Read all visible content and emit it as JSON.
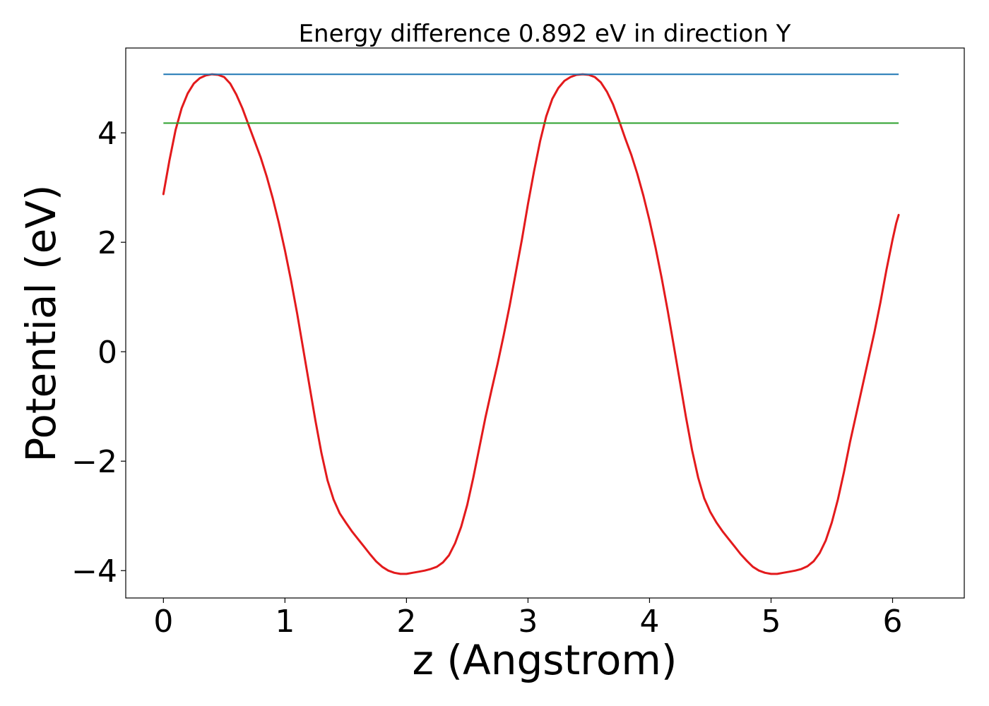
{
  "chart_data": {
    "type": "line",
    "title": "Energy difference 0.892 eV in direction Y",
    "xlabel": "z (Angstrom)",
    "ylabel": "Potential (eV)",
    "xlim": [
      -0.31,
      6.59
    ],
    "ylim": [
      -4.5,
      5.55
    ],
    "grid": false,
    "legend": "none",
    "x_ticks": [
      {
        "value": 0,
        "label": "0"
      },
      {
        "value": 1,
        "label": "1"
      },
      {
        "value": 2,
        "label": "2"
      },
      {
        "value": 3,
        "label": "3"
      },
      {
        "value": 4,
        "label": "4"
      },
      {
        "value": 5,
        "label": "5"
      },
      {
        "value": 6,
        "label": "6"
      }
    ],
    "y_ticks": [
      {
        "value": -4,
        "label": "−4"
      },
      {
        "value": -2,
        "label": "−2"
      },
      {
        "value": 0,
        "label": "0"
      },
      {
        "value": 2,
        "label": "2"
      },
      {
        "value": 4,
        "label": "4"
      }
    ],
    "series": [
      {
        "color": "#e31a1c",
        "kind": "curve",
        "points": [
          [
            0.0,
            2.88
          ],
          [
            0.05,
            3.5
          ],
          [
            0.1,
            4.05
          ],
          [
            0.15,
            4.45
          ],
          [
            0.2,
            4.72
          ],
          [
            0.25,
            4.9
          ],
          [
            0.3,
            5.0
          ],
          [
            0.35,
            5.05
          ],
          [
            0.4,
            5.07
          ],
          [
            0.45,
            5.06
          ],
          [
            0.5,
            5.02
          ],
          [
            0.55,
            4.9
          ],
          [
            0.6,
            4.7
          ],
          [
            0.65,
            4.45
          ],
          [
            0.7,
            4.15
          ],
          [
            0.75,
            3.85
          ],
          [
            0.8,
            3.55
          ],
          [
            0.85,
            3.2
          ],
          [
            0.9,
            2.8
          ],
          [
            0.95,
            2.35
          ],
          [
            1.0,
            1.85
          ],
          [
            1.05,
            1.3
          ],
          [
            1.1,
            0.7
          ],
          [
            1.15,
            0.05
          ],
          [
            1.2,
            -0.6
          ],
          [
            1.25,
            -1.25
          ],
          [
            1.3,
            -1.85
          ],
          [
            1.35,
            -2.35
          ],
          [
            1.4,
            -2.7
          ],
          [
            1.45,
            -2.95
          ],
          [
            1.5,
            -3.12
          ],
          [
            1.55,
            -3.28
          ],
          [
            1.6,
            -3.42
          ],
          [
            1.65,
            -3.56
          ],
          [
            1.7,
            -3.7
          ],
          [
            1.75,
            -3.83
          ],
          [
            1.8,
            -3.93
          ],
          [
            1.85,
            -4.0
          ],
          [
            1.9,
            -4.04
          ],
          [
            1.95,
            -4.06
          ],
          [
            2.0,
            -4.06
          ],
          [
            2.05,
            -4.04
          ],
          [
            2.1,
            -4.02
          ],
          [
            2.15,
            -4.0
          ],
          [
            2.2,
            -3.97
          ],
          [
            2.25,
            -3.93
          ],
          [
            2.3,
            -3.85
          ],
          [
            2.35,
            -3.72
          ],
          [
            2.4,
            -3.5
          ],
          [
            2.45,
            -3.2
          ],
          [
            2.5,
            -2.8
          ],
          [
            2.55,
            -2.3
          ],
          [
            2.6,
            -1.75
          ],
          [
            2.65,
            -1.2
          ],
          [
            2.7,
            -0.7
          ],
          [
            2.75,
            -0.22
          ],
          [
            2.8,
            0.3
          ],
          [
            2.85,
            0.85
          ],
          [
            2.9,
            1.45
          ],
          [
            2.95,
            2.05
          ],
          [
            3.0,
            2.7
          ],
          [
            3.05,
            3.3
          ],
          [
            3.1,
            3.85
          ],
          [
            3.15,
            4.3
          ],
          [
            3.2,
            4.62
          ],
          [
            3.25,
            4.82
          ],
          [
            3.3,
            4.95
          ],
          [
            3.35,
            5.02
          ],
          [
            3.4,
            5.06
          ],
          [
            3.45,
            5.07
          ],
          [
            3.5,
            5.06
          ],
          [
            3.55,
            5.02
          ],
          [
            3.6,
            4.92
          ],
          [
            3.65,
            4.75
          ],
          [
            3.7,
            4.52
          ],
          [
            3.75,
            4.22
          ],
          [
            3.8,
            3.9
          ],
          [
            3.85,
            3.6
          ],
          [
            3.9,
            3.25
          ],
          [
            3.95,
            2.85
          ],
          [
            4.0,
            2.4
          ],
          [
            4.05,
            1.9
          ],
          [
            4.1,
            1.35
          ],
          [
            4.15,
            0.75
          ],
          [
            4.2,
            0.1
          ],
          [
            4.25,
            -0.55
          ],
          [
            4.3,
            -1.2
          ],
          [
            4.35,
            -1.8
          ],
          [
            4.4,
            -2.3
          ],
          [
            4.45,
            -2.68
          ],
          [
            4.5,
            -2.93
          ],
          [
            4.55,
            -3.12
          ],
          [
            4.6,
            -3.28
          ],
          [
            4.65,
            -3.42
          ],
          [
            4.7,
            -3.56
          ],
          [
            4.75,
            -3.7
          ],
          [
            4.8,
            -3.82
          ],
          [
            4.85,
            -3.93
          ],
          [
            4.9,
            -4.0
          ],
          [
            4.95,
            -4.04
          ],
          [
            5.0,
            -4.06
          ],
          [
            5.05,
            -4.06
          ],
          [
            5.1,
            -4.04
          ],
          [
            5.15,
            -4.02
          ],
          [
            5.2,
            -4.0
          ],
          [
            5.25,
            -3.97
          ],
          [
            5.3,
            -3.92
          ],
          [
            5.35,
            -3.83
          ],
          [
            5.4,
            -3.68
          ],
          [
            5.45,
            -3.45
          ],
          [
            5.5,
            -3.12
          ],
          [
            5.55,
            -2.7
          ],
          [
            5.6,
            -2.2
          ],
          [
            5.65,
            -1.65
          ],
          [
            5.7,
            -1.15
          ],
          [
            5.75,
            -0.65
          ],
          [
            5.8,
            -0.15
          ],
          [
            5.85,
            0.35
          ],
          [
            5.9,
            0.9
          ],
          [
            5.95,
            1.5
          ],
          [
            6.0,
            2.05
          ],
          [
            6.03,
            2.35
          ],
          [
            6.05,
            2.5
          ]
        ]
      },
      {
        "color": "#1f77b4",
        "kind": "horizontal",
        "y": 5.07,
        "x": [
          0.0,
          6.05
        ]
      },
      {
        "color": "#2ca02c",
        "kind": "horizontal",
        "y": 4.178,
        "x": [
          0.0,
          6.05
        ]
      }
    ]
  }
}
